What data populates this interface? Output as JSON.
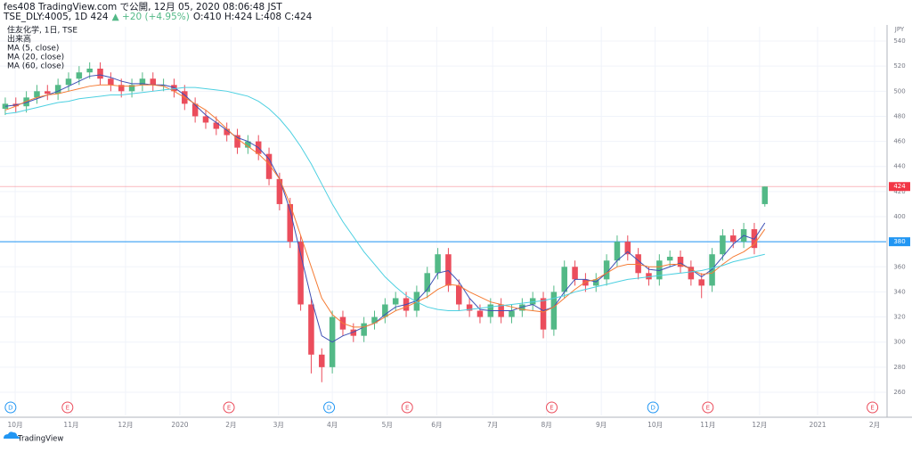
{
  "header": {
    "line1": "fes408 TradingView.com で公開, 12月 05, 2020 08:06:48 JST",
    "symbol": "TSE_DLY:4005, 1D 424",
    "change": "▲ +20 (+4.95%)",
    "ohlc": "O:410 H:424 L:408 C:424"
  },
  "footer": {
    "logo": "TradingView"
  },
  "chart_data": {
    "type": "candlestick",
    "legend": [
      "住友化学, 1日, TSE",
      "出来高"
    ],
    "axis_unit": "JPY",
    "up_color": "#53b987",
    "down_color": "#eb4d5c",
    "candles": {
      "open": [
        486,
        490,
        488,
        495,
        500,
        498,
        505,
        510,
        515,
        518,
        510,
        505,
        500,
        505,
        510,
        505,
        505,
        500,
        490,
        480,
        475,
        470,
        465,
        455,
        460,
        450,
        430,
        410,
        380,
        330,
        290,
        280,
        320,
        310,
        305,
        315,
        320,
        330,
        335,
        325,
        340,
        355,
        370,
        345,
        330,
        325,
        320,
        330,
        320,
        325,
        330,
        335,
        310,
        340,
        360,
        350,
        345,
        350,
        365,
        380,
        370,
        355,
        350,
        365,
        368,
        360,
        350,
        345,
        370,
        385,
        380,
        390,
        410
      ],
      "high": [
        495,
        495,
        500,
        505,
        505,
        510,
        515,
        520,
        523,
        523,
        515,
        510,
        510,
        515,
        515,
        510,
        510,
        505,
        495,
        485,
        480,
        475,
        470,
        465,
        465,
        455,
        435,
        415,
        385,
        335,
        295,
        325,
        325,
        315,
        320,
        325,
        335,
        340,
        340,
        345,
        360,
        375,
        375,
        350,
        335,
        330,
        335,
        335,
        330,
        335,
        340,
        340,
        345,
        365,
        365,
        355,
        355,
        370,
        385,
        385,
        375,
        360,
        370,
        373,
        373,
        365,
        355,
        375,
        390,
        390,
        395,
        395,
        424
      ],
      "low": [
        481,
        483,
        483,
        490,
        493,
        493,
        500,
        505,
        510,
        505,
        500,
        495,
        495,
        500,
        500,
        500,
        495,
        485,
        475,
        470,
        465,
        460,
        450,
        450,
        445,
        425,
        405,
        375,
        325,
        275,
        268,
        275,
        305,
        300,
        300,
        310,
        315,
        325,
        320,
        320,
        335,
        350,
        340,
        325,
        320,
        315,
        315,
        315,
        315,
        320,
        325,
        303,
        305,
        335,
        345,
        340,
        340,
        345,
        360,
        365,
        350,
        345,
        345,
        360,
        355,
        345,
        335,
        340,
        365,
        375,
        375,
        370,
        408
      ],
      "close": [
        490,
        488,
        495,
        500,
        498,
        505,
        510,
        515,
        518,
        510,
        505,
        500,
        505,
        510,
        505,
        505,
        500,
        490,
        480,
        475,
        470,
        465,
        455,
        460,
        450,
        430,
        410,
        380,
        330,
        290,
        280,
        320,
        310,
        305,
        315,
        320,
        330,
        335,
        325,
        340,
        355,
        370,
        345,
        330,
        325,
        320,
        330,
        320,
        325,
        330,
        335,
        310,
        340,
        360,
        350,
        345,
        350,
        365,
        380,
        370,
        355,
        350,
        365,
        368,
        360,
        350,
        345,
        370,
        385,
        380,
        390,
        375,
        424
      ]
    },
    "series": [
      {
        "name": "MA (5, close)",
        "color": "#3f51b5",
        "values": [
          488,
          489,
          491,
          494,
          497,
          500,
          504,
          508,
          512,
          513,
          511,
          508,
          506,
          506,
          505,
          505,
          503,
          497,
          489,
          481,
          475,
          469,
          463,
          460,
          455,
          446,
          430,
          405,
          370,
          335,
          305,
          300,
          305,
          308,
          312,
          315,
          322,
          328,
          330,
          333,
          342,
          355,
          357,
          348,
          335,
          326,
          325,
          325,
          325,
          328,
          330,
          325,
          328,
          340,
          350,
          350,
          348,
          355,
          365,
          372,
          365,
          358,
          357,
          360,
          363,
          358,
          352,
          358,
          368,
          378,
          385,
          382,
          395
        ]
      },
      {
        "name": "MA (20, close)",
        "color": "#f57c35",
        "values": [
          485,
          488,
          492,
          495,
          497,
          498,
          500,
          502,
          504,
          505,
          505,
          504,
          504,
          505,
          505,
          504,
          500,
          495,
          490,
          485,
          478,
          470,
          462,
          456,
          450,
          442,
          430,
          410,
          385,
          360,
          335,
          322,
          315,
          312,
          312,
          315,
          320,
          325,
          328,
          332,
          336,
          342,
          346,
          345,
          340,
          336,
          332,
          330,
          328,
          326,
          325,
          324,
          328,
          335,
          342,
          348,
          350,
          355,
          360,
          362,
          362,
          360,
          360,
          362,
          362,
          358,
          354,
          355,
          362,
          368,
          372,
          378,
          390
        ]
      },
      {
        "name": "MA (60, close)",
        "color": "#4dd0e1",
        "values": [
          482,
          483,
          485,
          487,
          489,
          491,
          492,
          494,
          495,
          496,
          497,
          497,
          498,
          499,
          500,
          501,
          502,
          503,
          503,
          502,
          501,
          500,
          498,
          496,
          492,
          486,
          478,
          468,
          456,
          442,
          426,
          410,
          396,
          384,
          372,
          362,
          352,
          344,
          337,
          332,
          328,
          326,
          325,
          325,
          326,
          327,
          328,
          329,
          330,
          331,
          332,
          333,
          335,
          337,
          340,
          342,
          344,
          346,
          348,
          350,
          351,
          352,
          353,
          354,
          355,
          356,
          357,
          359,
          361,
          364,
          366,
          368,
          370
        ]
      }
    ],
    "xlim": [
      -0.5,
      83.5
    ],
    "xticks": [
      {
        "value": 0.94,
        "label": "10月"
      },
      {
        "value": 6.25,
        "label": "11月"
      },
      {
        "value": 11.4,
        "label": "12月"
      },
      {
        "value": 16.55,
        "label": "2020"
      },
      {
        "value": 21.4,
        "label": "2月"
      },
      {
        "value": 25.9,
        "label": "3月"
      },
      {
        "value": 31,
        "label": "4月"
      },
      {
        "value": 36.2,
        "label": "5月"
      },
      {
        "value": 40.9,
        "label": "6月"
      },
      {
        "value": 46.2,
        "label": "7月"
      },
      {
        "value": 51.3,
        "label": "8月"
      },
      {
        "value": 56.5,
        "label": "9月"
      },
      {
        "value": 61.6,
        "label": "10月"
      },
      {
        "value": 66.6,
        "label": "11月"
      },
      {
        "value": 71.5,
        "label": "12月"
      },
      {
        "value": 77,
        "label": "2021"
      },
      {
        "value": 82.4,
        "label": "2月"
      }
    ],
    "events": [
      {
        "value": 0.5,
        "label": "D"
      },
      {
        "value": 5.9,
        "label": "E"
      },
      {
        "value": 21.2,
        "label": "E"
      },
      {
        "value": 30.7,
        "label": "D"
      },
      {
        "value": 38.1,
        "label": "E"
      },
      {
        "value": 51.8,
        "label": "E"
      },
      {
        "value": 61.4,
        "label": "D"
      },
      {
        "value": 66.6,
        "label": "E"
      },
      {
        "value": 82.2,
        "label": "E"
      }
    ],
    "ylim": [
      241.5,
      551.4
    ],
    "yticks": [
      260,
      280,
      300,
      320,
      340,
      360,
      380,
      400,
      420,
      440,
      460,
      480,
      500,
      520,
      540
    ],
    "grid": true,
    "horizontal_line": {
      "value": 380,
      "color": "#2196f3"
    },
    "price_line": {
      "value": 424,
      "color": "#f23645"
    }
  }
}
